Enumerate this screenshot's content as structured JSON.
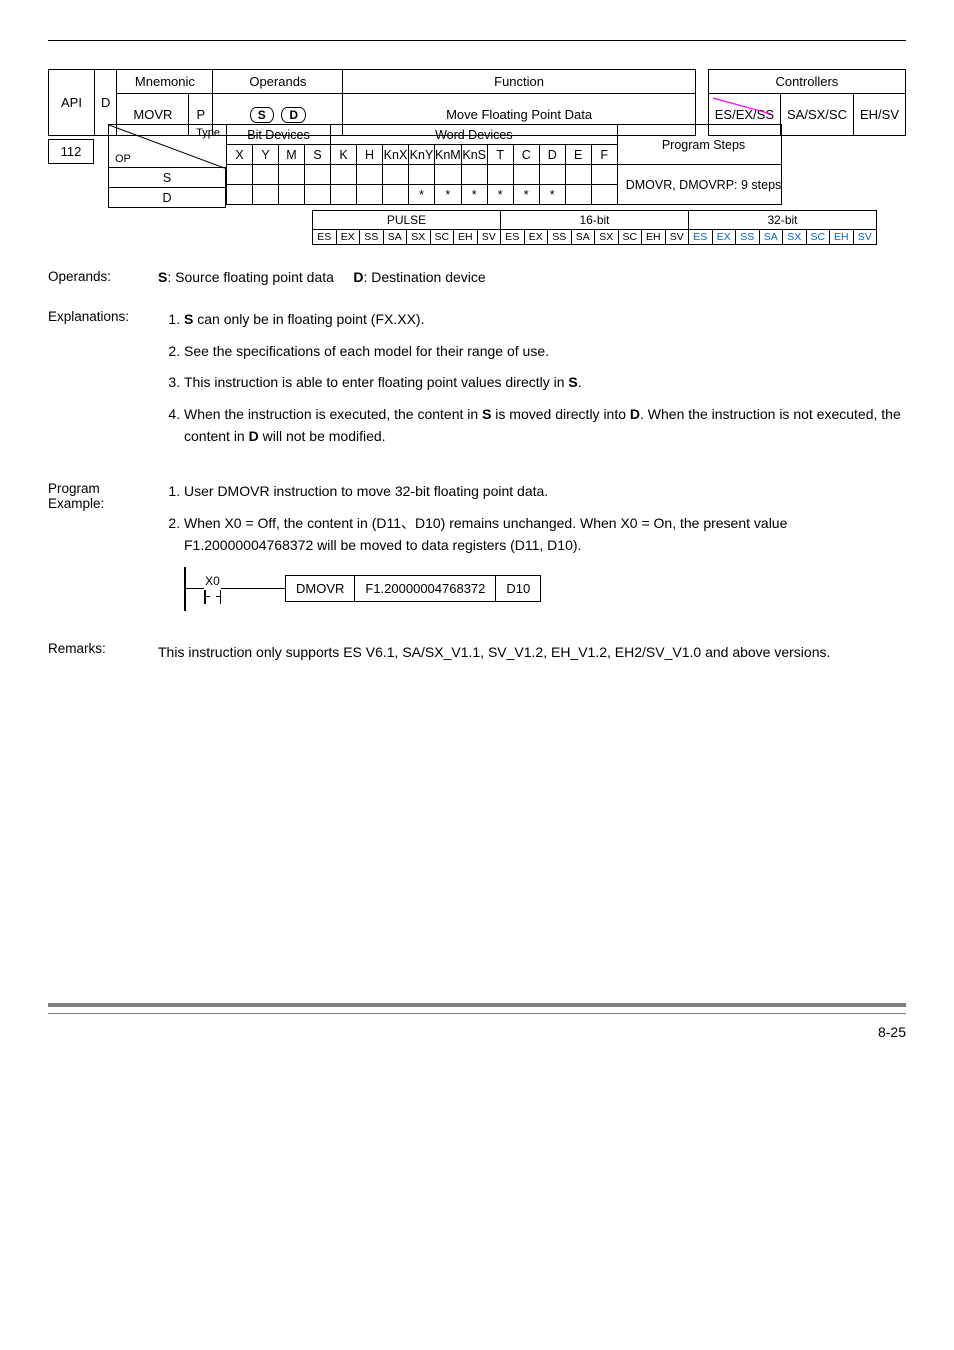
{
  "header": {
    "api_label": "API",
    "api_num": "112",
    "d_flag": "D",
    "mnemonic_label": "Mnemonic",
    "mnemonic": "MOVR",
    "p_flag": "P",
    "operands_label": "Operands",
    "operand_s": "S",
    "operand_d": "D",
    "function_label": "Function",
    "function_text": "Move Floating Point Data",
    "controllers_label": "Controllers",
    "controllers": [
      "ES/EX/SS",
      "SA/SX/SC",
      "EH/SV"
    ]
  },
  "op_table": {
    "type_label": "Type",
    "op_label": "OP",
    "bit_label": "Bit Devices",
    "word_label": "Word Devices",
    "steps_label": "Program Steps",
    "bit_cols": [
      "X",
      "Y",
      "M",
      "S"
    ],
    "word_cols": [
      "K",
      "H",
      "KnX",
      "KnY",
      "KnM",
      "KnS",
      "T",
      "C",
      "D",
      "E",
      "F"
    ],
    "steps_text": "DMOVR, DMOVRP: 9 steps",
    "rows": [
      {
        "name": "S",
        "bits": [
          "",
          "",
          "",
          ""
        ],
        "words": [
          "",
          "",
          "",
          "",
          "",
          "",
          "",
          "",
          "",
          "",
          ""
        ]
      },
      {
        "name": "D",
        "bits": [
          "",
          "",
          "",
          ""
        ],
        "words": [
          "",
          "",
          "",
          "*",
          "*",
          "*",
          "*",
          "*",
          "*",
          "",
          ""
        ]
      }
    ]
  },
  "mode_table": {
    "headers": [
      "PULSE",
      "16-bit",
      "32-bit"
    ],
    "cols": [
      "ES",
      "EX",
      "SS",
      "SA",
      "SX",
      "SC",
      "EH",
      "SV"
    ],
    "blue_group": 2
  },
  "operands_section": {
    "label": "Operands:",
    "s_text": ": Source floating point data",
    "d_text": ": Destination device"
  },
  "explanations": {
    "label": "Explanations:",
    "items": [
      " can only be in floating point (FX.XX).",
      "See the specifications of each model for their range of use.",
      "This instruction is able to enter floating point values directly in  .",
      "When the instruction is executed, the content in   is moved directly into  . When the instruction is not executed, the content in   will not be modified."
    ]
  },
  "program_example": {
    "label": "Program Example:",
    "items": [
      "User DMOVR instruction to move 32-bit floating point data.",
      "When X0 = Off, the content in (D11、D10) remains unchanged. When X0 = On, the present value F1.20000004768372 will be moved to data registers (D11, D10)."
    ],
    "ladder": {
      "contact": "X0",
      "boxes": [
        "DMOVR",
        "F1.20000004768372",
        "D10"
      ]
    }
  },
  "remarks": {
    "label": "Remarks:",
    "text": "This instruction only supports ES V6.1, SA/SX_V1.1, SV_V1.2, EH_V1.2, EH2/SV_V1.0 and above versions."
  },
  "footer": {
    "page": "8-25"
  },
  "colors": {
    "strike": "#ff00ff",
    "blue": "#0066cc",
    "footer_gray": "#808080"
  }
}
